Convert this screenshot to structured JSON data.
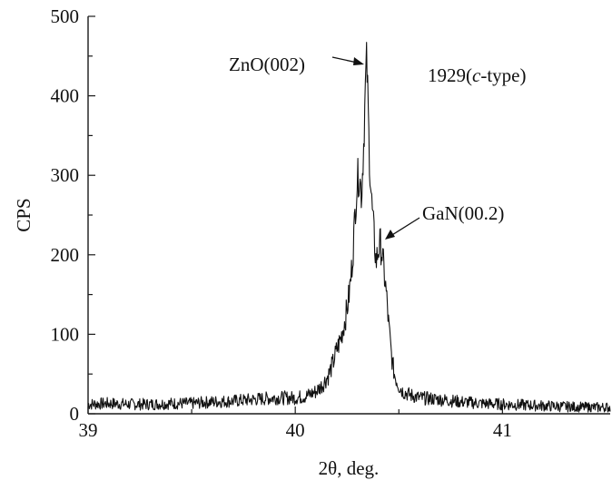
{
  "chart_data": {
    "type": "line",
    "title": "",
    "xlabel": "2θ, deg.",
    "ylabel": "CPS",
    "xlim": [
      39.0,
      41.52
    ],
    "ylim": [
      0,
      500
    ],
    "x_major_ticks": [
      39,
      40,
      41
    ],
    "x_minor_ticks": [
      39.5,
      40.5
    ],
    "y_major_ticks": [
      0,
      100,
      200,
      300,
      400,
      500
    ],
    "y_minor_ticks": [
      50,
      150,
      250,
      350,
      450
    ],
    "grid": false,
    "legend": "none",
    "series": [
      {
        "x": [
          39.0,
          39.1,
          39.2,
          39.3,
          39.4,
          39.5,
          39.6,
          39.7,
          39.8,
          39.9,
          40.0,
          40.05,
          40.1,
          40.13,
          40.16,
          40.18,
          40.2,
          40.22,
          40.24,
          40.25,
          40.26,
          40.27,
          40.28,
          40.29,
          40.3,
          40.31,
          40.32,
          40.33,
          40.34,
          40.345,
          40.35,
          40.355,
          40.36,
          40.37,
          40.38,
          40.39,
          40.4,
          40.41,
          40.42,
          40.43,
          40.44,
          40.45,
          40.46,
          40.47,
          40.48,
          40.5,
          40.52,
          40.55,
          40.6,
          40.7,
          40.8,
          40.9,
          41.0,
          41.1,
          41.2,
          41.3,
          41.4,
          41.52
        ],
        "y": [
          12,
          13,
          12,
          12,
          13,
          13,
          15,
          16,
          18,
          20,
          20,
          22,
          28,
          36,
          48,
          62,
          80,
          95,
          118,
          132,
          150,
          175,
          210,
          260,
          295,
          300,
          275,
          340,
          420,
          445,
          400,
          350,
          310,
          260,
          225,
          190,
          205,
          215,
          200,
          175,
          150,
          115,
          85,
          62,
          48,
          35,
          28,
          24,
          20,
          18,
          15,
          13,
          12,
          11,
          10,
          9,
          8,
          8
        ]
      }
    ],
    "annotations": [
      {
        "text": "ZnO(002)",
        "x": 40.345,
        "y": 445
      },
      {
        "text": "GaN(00.2)",
        "x": 40.42,
        "y": 215
      },
      {
        "text_pre": "1929(",
        "text_italic": "c",
        "text_post": "-type)"
      }
    ]
  }
}
